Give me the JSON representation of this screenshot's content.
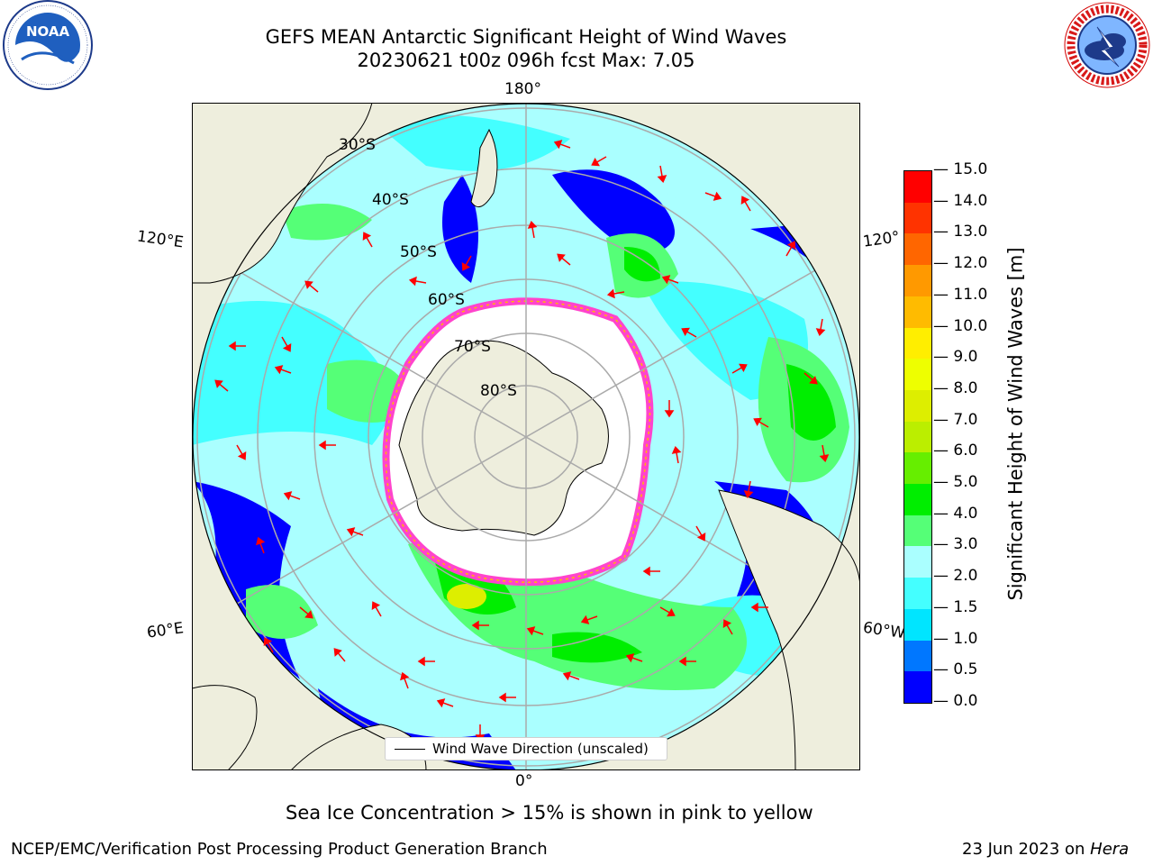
{
  "title": {
    "line1": "GEFS MEAN Antarctic Significant Height of Wind Waves",
    "line2": "20230621 t00z 096h fcst   Max: 7.05"
  },
  "map": {
    "projection": "south-polar-stereographic",
    "longitude_labels": {
      "top": "180°",
      "bottom": "0°",
      "upper_left": "120°E",
      "upper_right": "120°",
      "lower_left": "60°E",
      "lower_right": "60°W"
    },
    "latitude_labels": [
      "30°S",
      "40°S",
      "50°S",
      "60°S",
      "70°S",
      "80°S"
    ],
    "legend_label": "Wind Wave Direction (unscaled)",
    "colors": {
      "land": "#eeeedd",
      "ice_fringe": "#ff44cc",
      "graticule": "#aaaaaa",
      "arrow": "#ff0000"
    }
  },
  "colorbar": {
    "label": "Significant Height of Wind Waves [m]",
    "levels": [
      "0.0",
      "0.5",
      "1.0",
      "1.5",
      "2.0",
      "3.0",
      "4.0",
      "5.0",
      "6.0",
      "7.0",
      "8.0",
      "9.0",
      "10.0",
      "11.0",
      "12.0",
      "13.0",
      "14.0",
      "15.0"
    ],
    "colors": [
      "#0000ff",
      "#0077ff",
      "#00e5ff",
      "#44ffff",
      "#aaffff",
      "#55ff77",
      "#00ee00",
      "#66ee00",
      "#bbee00",
      "#ddee00",
      "#eeff00",
      "#ffee00",
      "#ffbb00",
      "#ff9900",
      "#ff6600",
      "#ff3300",
      "#ff0000"
    ]
  },
  "note": "Sea Ice Concentration > 15% is shown in pink to yellow",
  "footer": {
    "left": "NCEP/EMC/Verification Post Processing Product Generation Branch",
    "right_prefix": "23 Jun 2023 on ",
    "right_machine": "Hera"
  },
  "logos": {
    "noaa_text": "NOAA",
    "noaa_ring": "NATIONAL OCEANIC AND ATMOSPHERIC ADMINISTRATION · U.S. DEPARTMENT OF COMMERCE",
    "nws_ring": "NATIONAL WEATHER SERVICE"
  }
}
